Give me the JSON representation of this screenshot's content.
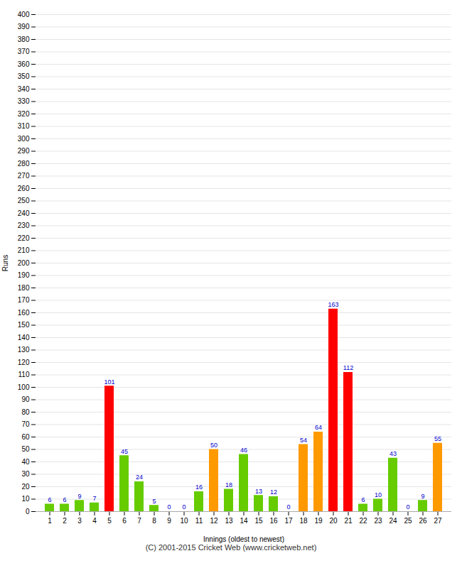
{
  "chart_data": {
    "type": "bar",
    "xlabel": "Innings (oldest to newest)",
    "ylabel": "Runs",
    "caption": "(C) 2001-2015 Cricket Web (www.cricketweb.net)",
    "categories": [
      1,
      2,
      3,
      4,
      5,
      6,
      7,
      8,
      9,
      10,
      11,
      12,
      13,
      14,
      15,
      16,
      17,
      18,
      19,
      20,
      21,
      22,
      23,
      24,
      25,
      26,
      27
    ],
    "values": [
      6,
      6,
      9,
      7,
      101,
      45,
      24,
      5,
      0,
      0,
      16,
      50,
      18,
      46,
      13,
      12,
      0,
      54,
      64,
      163,
      112,
      6,
      10,
      43,
      0,
      9,
      55
    ],
    "colors": [
      "#66cc00",
      "#66cc00",
      "#66cc00",
      "#66cc00",
      "#ff0000",
      "#66cc00",
      "#66cc00",
      "#66cc00",
      "#66cc00",
      "#66cc00",
      "#66cc00",
      "#ff9900",
      "#66cc00",
      "#66cc00",
      "#66cc00",
      "#66cc00",
      "#66cc00",
      "#ff9900",
      "#ff9900",
      "#ff0000",
      "#ff0000",
      "#66cc00",
      "#66cc00",
      "#66cc00",
      "#66cc00",
      "#66cc00",
      "#ff9900"
    ],
    "ylim": [
      0,
      400
    ],
    "yticks": [
      0,
      10,
      20,
      30,
      40,
      50,
      60,
      70,
      80,
      90,
      100,
      110,
      120,
      130,
      140,
      150,
      160,
      170,
      180,
      190,
      200,
      210,
      220,
      230,
      240,
      250,
      260,
      270,
      280,
      290,
      300,
      310,
      320,
      330,
      340,
      350,
      360,
      370,
      380,
      390,
      400
    ],
    "grid": true,
    "data_labels": true
  }
}
